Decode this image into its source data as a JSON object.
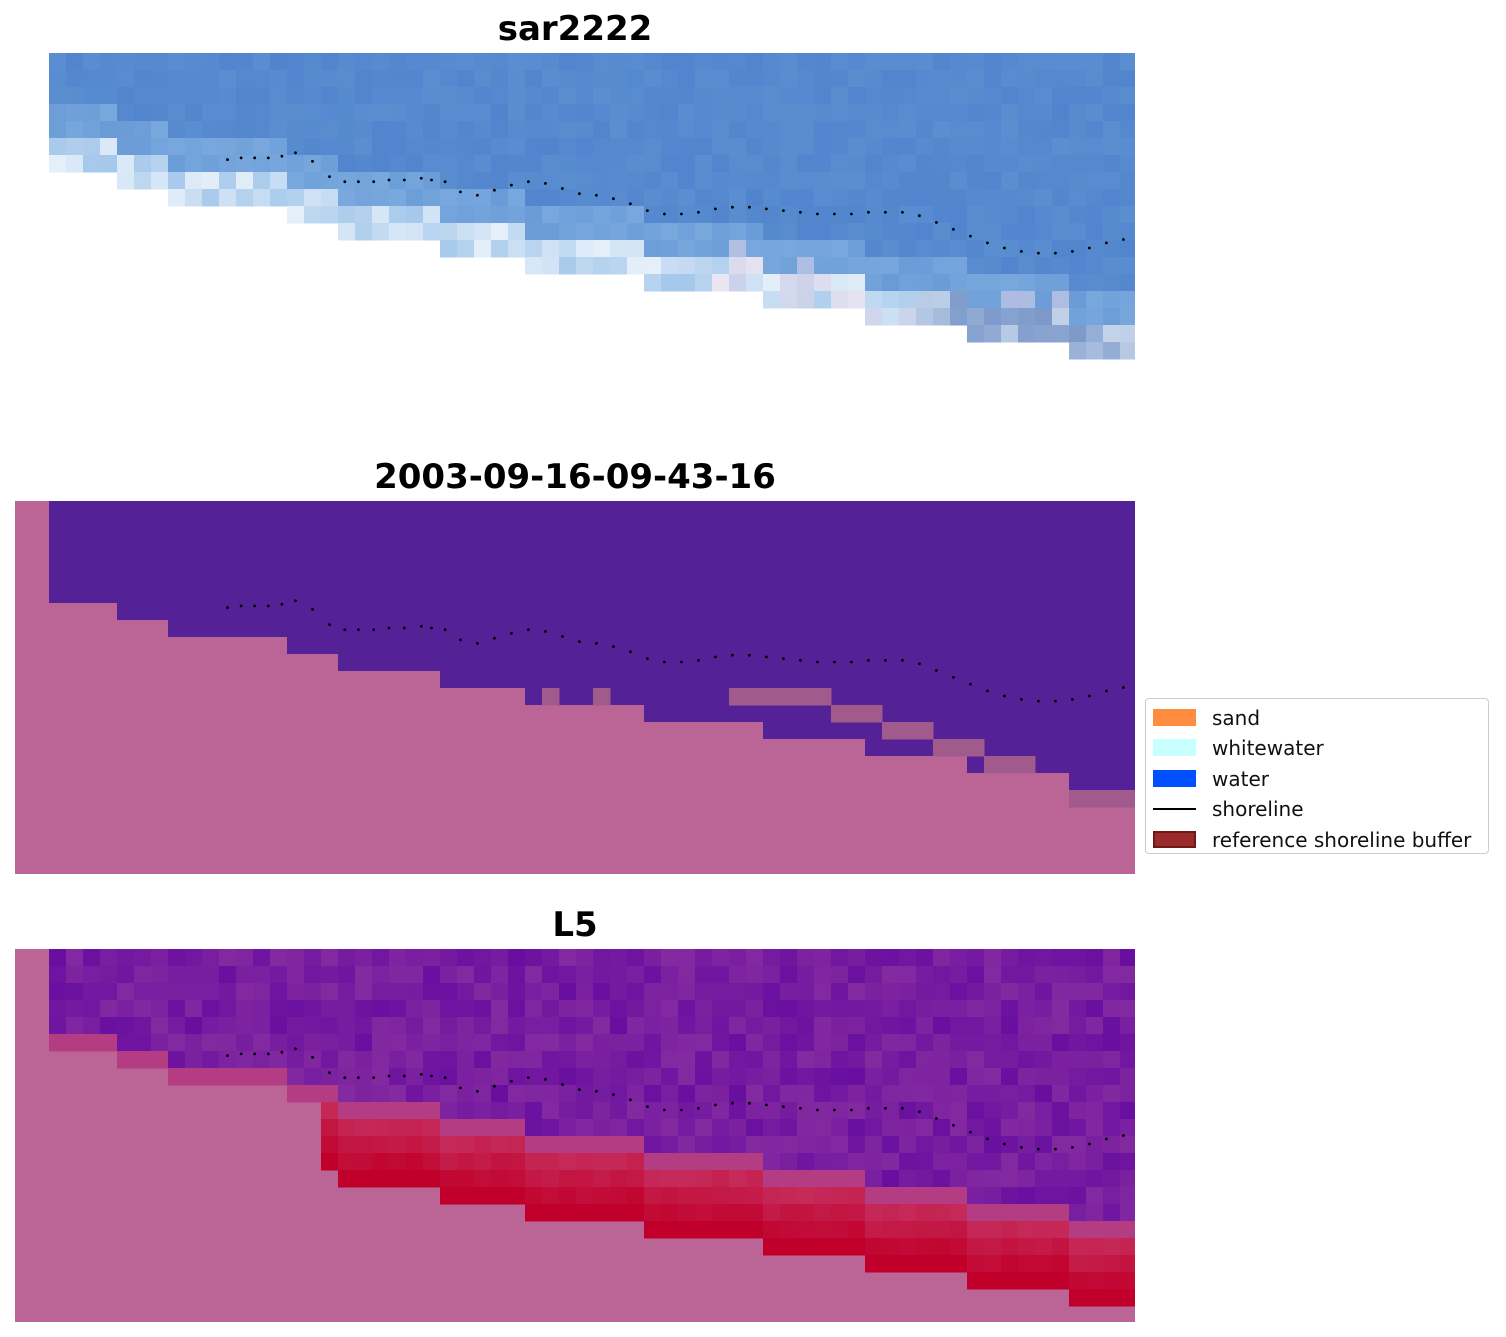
{
  "figure": {
    "titles": [
      "sar2222",
      "2003-09-16-09-43-16",
      "L5"
    ]
  },
  "legend": {
    "placement": "center-right",
    "items": [
      {
        "label": "sand",
        "kind": "patch",
        "color": "#ff8c3f"
      },
      {
        "label": "whitewater",
        "kind": "patch",
        "color": "#c8ffff"
      },
      {
        "label": "water",
        "kind": "patch",
        "color": "#0050ff"
      },
      {
        "label": "shoreline",
        "kind": "line",
        "color": "#000000"
      },
      {
        "label": "reference shoreline buffer",
        "kind": "patch",
        "color": "#9b2b2b",
        "edge": "#701818"
      }
    ]
  },
  "chart_data": [
    {
      "type": "heatmap",
      "title": "sar2222",
      "axis": "off",
      "grid": false,
      "description_colors": {
        "water": "#5a8ed0",
        "nodata": "#ffffff",
        "surf": "#eef3fb"
      },
      "data_edge_row_by_col": [
        6,
        6,
        6,
        6,
        7,
        7,
        7,
        8,
        8,
        8,
        8,
        8,
        8,
        8,
        9,
        9,
        9,
        10,
        10,
        10,
        10,
        10,
        10,
        11,
        11,
        11,
        11,
        11,
        12,
        12,
        12,
        12,
        12,
        12,
        12,
        13,
        13,
        13,
        13,
        13,
        13,
        13,
        14,
        14,
        14,
        14,
        14,
        14,
        15,
        15,
        15,
        15,
        15,
        15,
        16,
        16,
        16,
        16,
        16,
        16,
        17,
        17,
        17,
        17
      ],
      "shoreline_points": [
        [
          12.5,
          6.3
        ],
        [
          13.3,
          6.2
        ],
        [
          14.1,
          6.2
        ],
        [
          14.9,
          6.2
        ],
        [
          15.7,
          6.1
        ],
        [
          16.5,
          5.9
        ],
        [
          17.5,
          6.4
        ],
        [
          18.5,
          7.3
        ],
        [
          19.4,
          7.6
        ],
        [
          20.2,
          7.6
        ],
        [
          21.1,
          7.6
        ],
        [
          22.0,
          7.5
        ],
        [
          22.9,
          7.5
        ],
        [
          23.9,
          7.4
        ],
        [
          24.5,
          7.5
        ],
        [
          25.3,
          7.6
        ],
        [
          26.2,
          8.2
        ],
        [
          27.2,
          8.4
        ],
        [
          28.2,
          8.1
        ],
        [
          29.2,
          7.8
        ],
        [
          30.2,
          7.6
        ],
        [
          31.2,
          7.7
        ],
        [
          32.2,
          8.0
        ],
        [
          33.2,
          8.3
        ],
        [
          34.2,
          8.4
        ],
        [
          35.2,
          8.6
        ],
        [
          36.2,
          8.9
        ],
        [
          37.2,
          9.3
        ],
        [
          38.2,
          9.5
        ],
        [
          39.2,
          9.5
        ],
        [
          40.2,
          9.4
        ],
        [
          41.2,
          9.2
        ],
        [
          42.2,
          9.1
        ],
        [
          43.2,
          9.1
        ],
        [
          44.2,
          9.2
        ],
        [
          45.2,
          9.3
        ],
        [
          46.2,
          9.4
        ],
        [
          47.2,
          9.5
        ],
        [
          48.2,
          9.5
        ],
        [
          49.2,
          9.5
        ],
        [
          50.2,
          9.4
        ],
        [
          51.2,
          9.4
        ],
        [
          52.2,
          9.4
        ],
        [
          53.2,
          9.6
        ],
        [
          54.2,
          10.0
        ],
        [
          55.2,
          10.4
        ],
        [
          56.2,
          10.8
        ],
        [
          57.2,
          11.2
        ],
        [
          58.2,
          11.5
        ],
        [
          59.2,
          11.7
        ],
        [
          60.2,
          11.8
        ],
        [
          61.2,
          11.8
        ],
        [
          62.2,
          11.7
        ],
        [
          63.2,
          11.5
        ],
        [
          64.2,
          11.2
        ],
        [
          65.2,
          11.0
        ],
        [
          66.0,
          10.8
        ]
      ],
      "grid_size": {
        "cols": 64,
        "rows": 18
      }
    },
    {
      "type": "heatmap",
      "title": "2003-09-16-09-43-16",
      "axis": "off",
      "grid": false,
      "classes": {
        "water": "#542296",
        "land": "#bb6496",
        "mixed": "#a05a8c"
      },
      "grid_size": {
        "cols": 66,
        "rows": 22
      }
    },
    {
      "type": "heatmap",
      "title": "L5",
      "axis": "off",
      "grid": false,
      "colormap": {
        "low": "#5a00a0",
        "mid": "#b46496",
        "high": "#c0002a",
        "nodata": "#bb6496"
      },
      "grid_size": {
        "cols": 66,
        "rows": 22
      }
    }
  ]
}
